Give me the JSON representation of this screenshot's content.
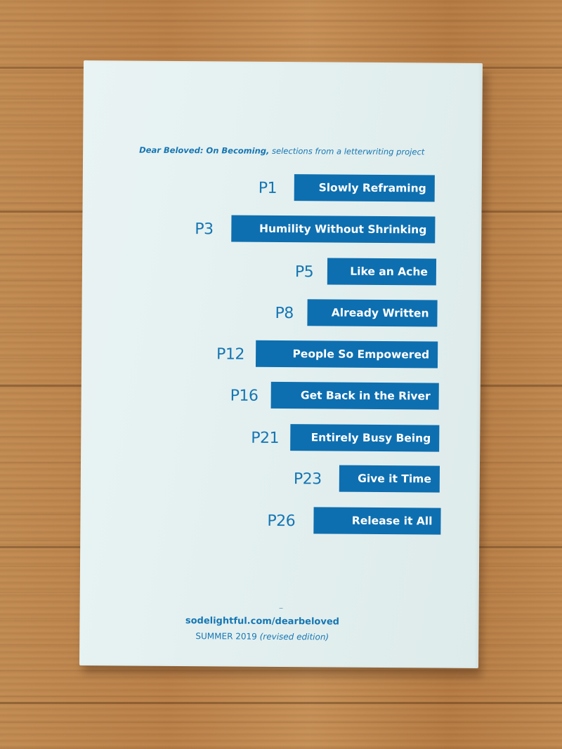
{
  "booklet": {
    "title": "Dear Beloved: On Becoming,",
    "subtitle": "selections from a letterwriting project",
    "chapters": [
      {
        "page": "P1",
        "title": "Slowly Reframing"
      },
      {
        "page": "P3",
        "title": "Humility Without Shrinking"
      },
      {
        "page": "P5",
        "title": "Like an Ache"
      },
      {
        "page": "P8",
        "title": "Already Written"
      },
      {
        "page": "P12",
        "title": "People So Empowered"
      },
      {
        "page": "P16",
        "title": "Get Back in the River"
      },
      {
        "page": "P21",
        "title": "Entirely Busy Being"
      },
      {
        "page": "P23",
        "title": "Give it Time"
      },
      {
        "page": "P26",
        "title": "Release it All"
      }
    ],
    "footer": {
      "url": "sodelightful.com/dearbeloved",
      "season": "SUMMER 2019",
      "edition": "(revised edition)"
    }
  },
  "colors": {
    "accent": "#0d6fb0",
    "text": "#1576b3",
    "paper": "#e6f1f1",
    "wood": "#bd8650"
  }
}
